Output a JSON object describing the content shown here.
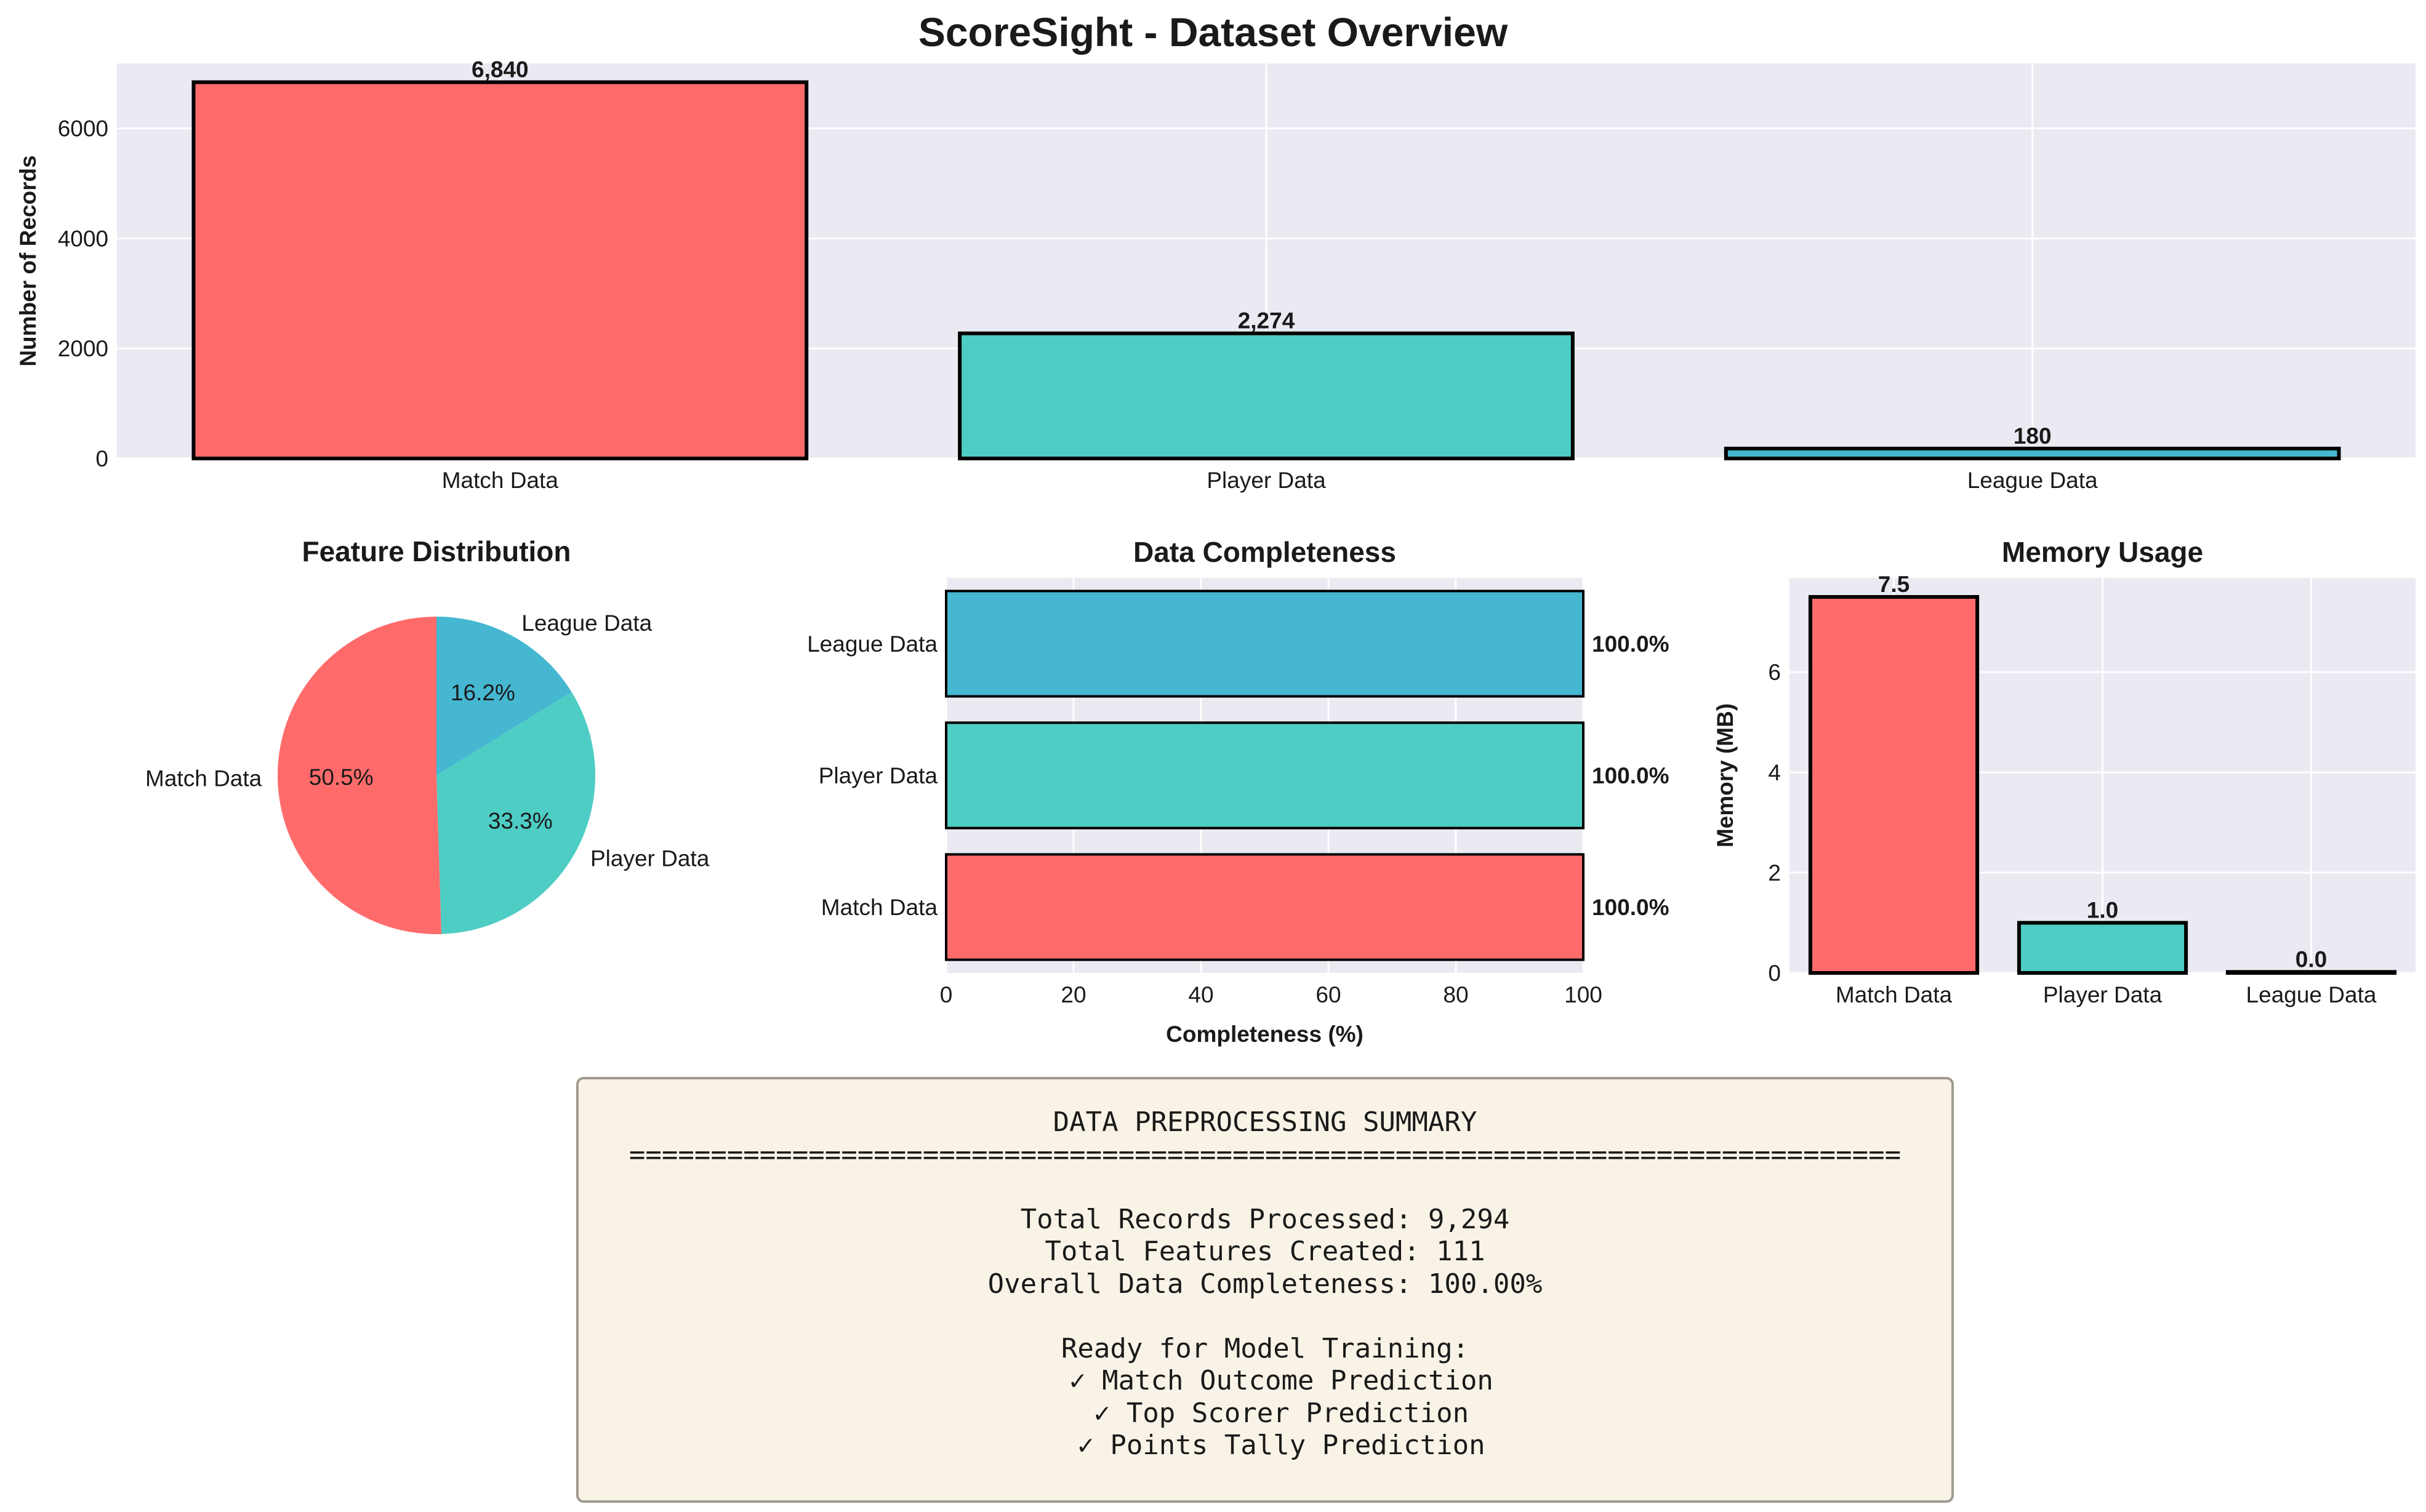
{
  "page": {
    "title": "ScoreSight - Dataset Overview"
  },
  "chart_data": [
    {
      "id": "records",
      "type": "bar",
      "title": "",
      "xlabel": "",
      "ylabel": "Number of Records",
      "categories": [
        "Match Data",
        "Player Data",
        "League Data"
      ],
      "values": [
        6840,
        2274,
        180
      ],
      "value_labels": [
        "6,840",
        "2,274",
        "180"
      ],
      "colors": [
        "#ff6b6b",
        "#4ecdc4",
        "#45b7d1"
      ],
      "ylim": [
        0,
        7182
      ],
      "yticks": [
        0,
        2000,
        4000,
        6000
      ],
      "grid": true
    },
    {
      "id": "features",
      "type": "pie",
      "title": "Feature Distribution",
      "labels": [
        "Match Data",
        "Player Data",
        "League Data"
      ],
      "values": [
        50.5,
        33.3,
        16.2
      ],
      "value_labels": [
        "50.5%",
        "33.3%",
        "16.2%"
      ],
      "colors": [
        "#ff6b6b",
        "#4ecdc4",
        "#45b7d1"
      ]
    },
    {
      "id": "completeness",
      "type": "bar",
      "orientation": "horizontal",
      "title": "Data Completeness",
      "xlabel": "Completeness (%)",
      "ylabel": "",
      "categories": [
        "Match Data",
        "Player Data",
        "League Data"
      ],
      "values": [
        100.0,
        100.0,
        100.0
      ],
      "value_labels": [
        "100.0%",
        "100.0%",
        "100.0%"
      ],
      "colors": [
        "#ff6b6b",
        "#4ecdc4",
        "#45b7d1"
      ],
      "xlim": [
        0,
        100
      ],
      "xticks": [
        0,
        20,
        40,
        60,
        80,
        100
      ],
      "grid": true
    },
    {
      "id": "memory",
      "type": "bar",
      "title": "Memory Usage",
      "xlabel": "",
      "ylabel": "Memory (MB)",
      "categories": [
        "Match Data",
        "Player Data",
        "League Data"
      ],
      "values": [
        7.5,
        1.0,
        0.02
      ],
      "value_labels": [
        "7.5",
        "1.0",
        "0.0"
      ],
      "colors": [
        "#ff6b6b",
        "#4ecdc4",
        "#45b7d1"
      ],
      "ylim": [
        0,
        7.88
      ],
      "yticks": [
        0,
        2,
        4,
        6
      ],
      "grid": true
    }
  ],
  "summary": {
    "title": "DATA PREPROCESSING SUMMARY",
    "separator": "==============================================================================",
    "lines": [
      "",
      "Total Records Processed: 9,294",
      "Total Features Created: 111",
      "Overall Data Completeness: 100.00%",
      "",
      "Ready for Model Training:",
      "  ✓ Match Outcome Prediction",
      "  ✓ Top Scorer Prediction",
      "  ✓ Points Tally Prediction"
    ]
  },
  "colors": {
    "plot_background": "#eaeaf2",
    "grid": "#ffffff",
    "edge": "#000000",
    "summary_background": "#f8f3e6"
  }
}
